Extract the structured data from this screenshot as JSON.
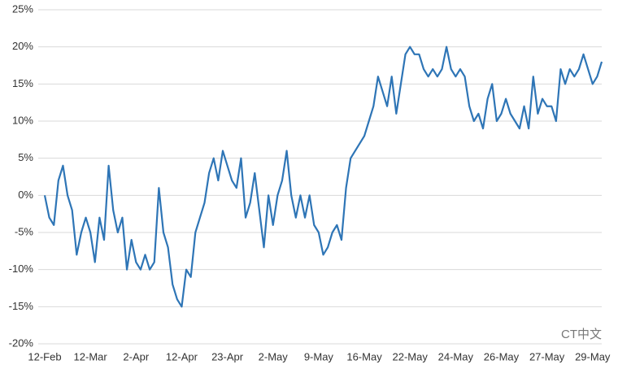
{
  "chart_data": {
    "type": "line",
    "categories": [
      "12-Feb",
      null,
      null,
      null,
      null,
      null,
      null,
      null,
      null,
      null,
      "12-Mar",
      null,
      null,
      null,
      null,
      null,
      null,
      null,
      null,
      null,
      "2-Apr",
      null,
      null,
      null,
      null,
      null,
      null,
      null,
      null,
      null,
      "12-Apr",
      null,
      null,
      null,
      null,
      null,
      null,
      null,
      null,
      null,
      "23-Apr",
      null,
      null,
      null,
      null,
      null,
      null,
      null,
      null,
      null,
      "2-May",
      null,
      null,
      null,
      null,
      null,
      null,
      null,
      null,
      null,
      "9-May",
      null,
      null,
      null,
      null,
      null,
      null,
      null,
      null,
      null,
      "16-May",
      null,
      null,
      null,
      null,
      null,
      null,
      null,
      null,
      null,
      "22-May",
      null,
      null,
      null,
      null,
      null,
      null,
      null,
      null,
      null,
      "24-May",
      null,
      null,
      null,
      null,
      null,
      null,
      null,
      null,
      null,
      "26-May",
      null,
      null,
      null,
      null,
      null,
      null,
      null,
      null,
      null,
      "27-May",
      null,
      null,
      null,
      null,
      null,
      null,
      null,
      null,
      null,
      "29-May",
      null,
      null
    ],
    "series": [
      {
        "color": "#2e75b6",
        "values": [
          0,
          -3,
          -4,
          2,
          4,
          0,
          -2,
          -8,
          -5,
          -3,
          -5,
          -9,
          -3,
          -6,
          4,
          -2,
          -5,
          -3,
          -10,
          -6,
          -9,
          -10,
          -8,
          -10,
          -9,
          1,
          -5,
          -7,
          -12,
          -14,
          -15,
          -10,
          -11,
          -5,
          -3,
          -1,
          3,
          5,
          2,
          6,
          4,
          2,
          1,
          5,
          -3,
          -1,
          3,
          -2,
          -7,
          0,
          -4,
          0,
          2,
          6,
          0,
          -3,
          0,
          -3,
          0,
          -4,
          -5,
          -8,
          -7,
          -5,
          -4,
          -6,
          1,
          5,
          6,
          7,
          8,
          10,
          12,
          16,
          14,
          12,
          16,
          11,
          15,
          19,
          20,
          19,
          19,
          17,
          16,
          17,
          16,
          17,
          20,
          17,
          16,
          17,
          16,
          12,
          10,
          11,
          9,
          13,
          15,
          10,
          11,
          13,
          11,
          10,
          9,
          12,
          9,
          16,
          11,
          13,
          12,
          12,
          10,
          17,
          15,
          17,
          16,
          17,
          19,
          17,
          15,
          16,
          18
        ]
      }
    ],
    "ylim": [
      -20,
      25
    ],
    "yticks": [
      {
        "value": -20,
        "label": "-20%"
      },
      {
        "value": -15,
        "label": "-15%"
      },
      {
        "value": -10,
        "label": "-10%"
      },
      {
        "value": -5,
        "label": "-5%"
      },
      {
        "value": 0,
        "label": "0%"
      },
      {
        "value": 5,
        "label": "5%"
      },
      {
        "value": 10,
        "label": "10%"
      },
      {
        "value": 15,
        "label": "15%"
      },
      {
        "value": 20,
        "label": "20%"
      },
      {
        "value": 25,
        "label": "25%"
      }
    ],
    "grid": true,
    "watermark": "CT中文"
  }
}
